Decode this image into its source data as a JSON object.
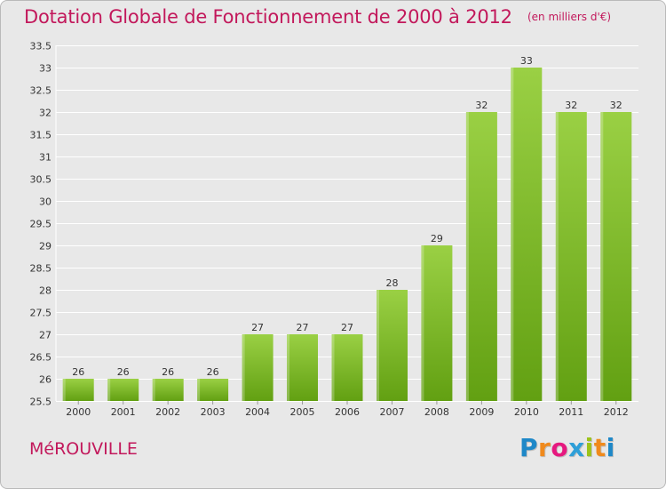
{
  "header": {
    "title": "Dotation Globale de Fonctionnement de 2000 à 2012",
    "subtitle": "(en milliers d'€)"
  },
  "footer": {
    "commune": "MéROUVILLE",
    "logo": {
      "letters": [
        "P",
        "r",
        "o",
        "x",
        "i",
        "t",
        "i"
      ],
      "colors": [
        "#1e88c8",
        "#f08a1c",
        "#e6197f",
        "#2e9fd8",
        "#9cc31a",
        "#f08a1c",
        "#1e88c8"
      ]
    }
  },
  "chart_data": {
    "type": "bar",
    "categories": [
      "2000",
      "2001",
      "2002",
      "2003",
      "2004",
      "2005",
      "2006",
      "2007",
      "2008",
      "2009",
      "2010",
      "2011",
      "2012"
    ],
    "values": [
      26,
      26,
      26,
      26,
      27,
      27,
      27,
      28,
      29,
      32,
      33,
      32,
      32
    ],
    "data_labels": [
      "26",
      "26",
      "26",
      "26",
      "27",
      "27",
      "27",
      "28",
      "29",
      "32",
      "33",
      "32",
      "32"
    ],
    "ylim": [
      25.5,
      33.5
    ],
    "yticks": [
      "25.5",
      "26",
      "26.5",
      "27",
      "27.5",
      "28",
      "28.5",
      "29",
      "29.5",
      "30",
      "30.5",
      "31",
      "31.5",
      "32",
      "32.5",
      "33",
      "33.5"
    ],
    "grid": true,
    "colors": {
      "bar_top": "#9ad044",
      "bar_bottom": "#62a012",
      "grid": "#ffffff",
      "plot_bg": "#e8e8e8"
    }
  }
}
